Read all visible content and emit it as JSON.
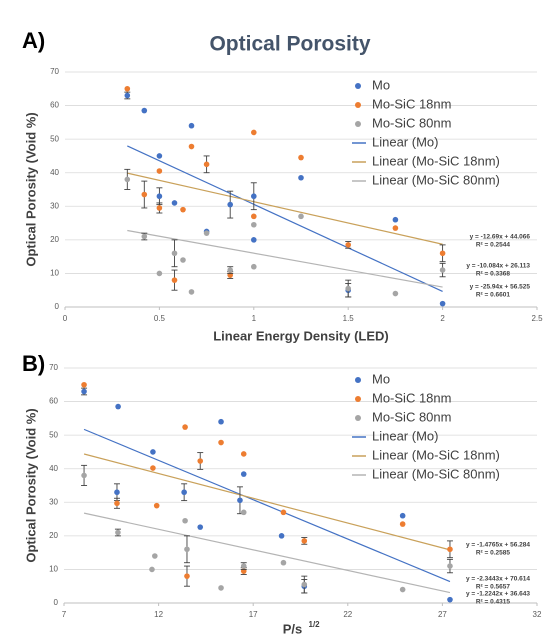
{
  "chart_data": [
    {
      "type": "scatter",
      "panel_label": "A)",
      "title": "Optical Porosity",
      "x_label": "Linear Energy Density (LED)",
      "y_label": "Optical Porosity (Void %)",
      "xlim": [
        0,
        2.5
      ],
      "xticks": [
        0,
        0.5,
        1,
        1.5,
        2,
        2.5
      ],
      "ylim": [
        0,
        70
      ],
      "yticks": [
        0,
        10,
        20,
        30,
        40,
        50,
        60,
        70
      ],
      "grid": true,
      "series": [
        {
          "name": "Mo",
          "color": "#4472c4",
          "x": [
            0.33,
            0.42,
            0.5,
            0.5,
            0.58,
            0.67,
            0.75,
            0.875,
            1,
            1,
            1.25,
            1.5,
            1.75,
            2
          ],
          "values": [
            63,
            58.5,
            45,
            33,
            31,
            54,
            22.5,
            30.5,
            20,
            33,
            38.5,
            5,
            26,
            1
          ],
          "errors": [
            1,
            null,
            null,
            2.5,
            null,
            null,
            null,
            4,
            null,
            4,
            null,
            2,
            null,
            null
          ]
        },
        {
          "name": "Mo-SiC 18nm",
          "color": "#ed7d31",
          "x": [
            0.33,
            0.42,
            0.5,
            0.5,
            0.58,
            0.625,
            0.67,
            0.75,
            0.875,
            1,
            1,
            1.25,
            1.5,
            1.75,
            2
          ],
          "values": [
            65,
            33.5,
            29.5,
            40.5,
            8,
            29,
            47.8,
            42.5,
            9.5,
            52,
            27,
            44.5,
            18.5,
            23.5,
            16
          ],
          "errors": [
            null,
            4,
            1.5,
            null,
            3,
            null,
            null,
            2.5,
            1,
            null,
            null,
            null,
            1,
            null,
            2.5
          ]
        },
        {
          "name": "Mo-SiC 80nm",
          "color": "#a5a5a5",
          "x": [
            0.33,
            0.42,
            0.5,
            0.58,
            0.625,
            0.67,
            0.75,
            0.875,
            1,
            1,
            1.25,
            1.5,
            1.75,
            2
          ],
          "values": [
            38,
            21,
            10,
            16,
            14,
            4.5,
            22,
            11,
            24.5,
            12,
            27,
            5.5,
            4,
            11
          ],
          "errors": [
            3,
            1,
            null,
            4,
            null,
            null,
            null,
            1,
            null,
            null,
            null,
            2.5,
            null,
            2
          ]
        }
      ],
      "trendlines": [
        {
          "name": "Linear (Mo)",
          "color": "#4472c4",
          "slope": -25.94,
          "intercept": 56.525,
          "equation": "y = -25.94x + 56.525",
          "r2": "R² = 0.6601"
        },
        {
          "name": "Linear (Mo-SiC 18nm)",
          "color": "#c9a15a",
          "slope": -12.69,
          "intercept": 44.066,
          "equation": "y = -12.69x + 44.066",
          "r2": "R² = 0.2544"
        },
        {
          "name": "Linear (Mo-SiC 80nm)",
          "color": "#b4b4b4",
          "slope": -10.084,
          "intercept": 26.113,
          "equation": "y = -10.084x + 26.113",
          "r2": "R² = 0.3368"
        }
      ]
    },
    {
      "type": "scatter",
      "panel_label": "B)",
      "x_label": "P/s",
      "x_label_sup": "1/2",
      "y_label": "Optical Porosity (Void %)",
      "xlim": [
        7,
        32
      ],
      "xticks": [
        7,
        12,
        17,
        22,
        27,
        32
      ],
      "ylim": [
        0,
        70
      ],
      "yticks": [
        0,
        10,
        20,
        30,
        40,
        50,
        60,
        70
      ],
      "grid": true,
      "series": [
        {
          "name": "Mo",
          "color": "#4472c4",
          "x": [
            8.06,
            9.86,
            11.7,
            9.8,
            13.35,
            15.3,
            14.2,
            16.3,
            18.5,
            16.5,
            19.7,
            24.9,
            27.4
          ],
          "values": [
            63,
            58.5,
            45,
            33,
            33,
            54,
            22.6,
            30.6,
            20,
            38.4,
            5,
            26,
            1
          ],
          "errors": [
            1,
            null,
            null,
            2.5,
            2.5,
            null,
            null,
            4,
            null,
            null,
            2,
            null,
            null
          ]
        },
        {
          "name": "Mo-SiC 18nm",
          "color": "#ed7d31",
          "x": [
            8.06,
            9.8,
            11.7,
            11.9,
            13.5,
            13.4,
            14.2,
            15.3,
            16.5,
            16.5,
            18.6,
            19.7,
            24.9,
            27.4
          ],
          "values": [
            65,
            29.7,
            40.2,
            29,
            8,
            52.4,
            42.3,
            47.8,
            44.4,
            9.5,
            27,
            18.5,
            23.5,
            16
          ],
          "errors": [
            null,
            1.5,
            null,
            null,
            3,
            null,
            2.5,
            null,
            null,
            1,
            null,
            1,
            null,
            2.5
          ]
        },
        {
          "name": "Mo-SiC 80nm",
          "color": "#a5a5a5",
          "x": [
            8.06,
            9.85,
            11.65,
            11.8,
            13.5,
            13.4,
            15.3,
            16.5,
            16.5,
            18.6,
            19.7,
            24.9,
            27.4
          ],
          "values": [
            38,
            21,
            10,
            14,
            16,
            24.5,
            4.5,
            11,
            27,
            12,
            5.5,
            4,
            11
          ],
          "errors": [
            3,
            1,
            null,
            null,
            4,
            null,
            null,
            1,
            null,
            null,
            2.5,
            null,
            2
          ]
        }
      ],
      "trendlines": [
        {
          "name": "Linear (Mo)",
          "color": "#4472c4",
          "slope": -2.3443,
          "intercept": 70.614,
          "equation": "y = -2.3443x + 70.614",
          "r2": "R² = 0.5657"
        },
        {
          "name": "Linear (Mo-SiC 18nm)",
          "color": "#c9a15a",
          "slope": -1.4765,
          "intercept": 56.284,
          "equation": "y = -1.4765x + 56.284",
          "r2": "R² = 0.2585"
        },
        {
          "name": "Linear (Mo-SiC 80nm)",
          "color": "#b4b4b4",
          "slope": -1.2242,
          "intercept": 36.643,
          "equation": "y = -1.2242x + 36.643",
          "r2": "R² = 0.4315"
        }
      ]
    }
  ]
}
